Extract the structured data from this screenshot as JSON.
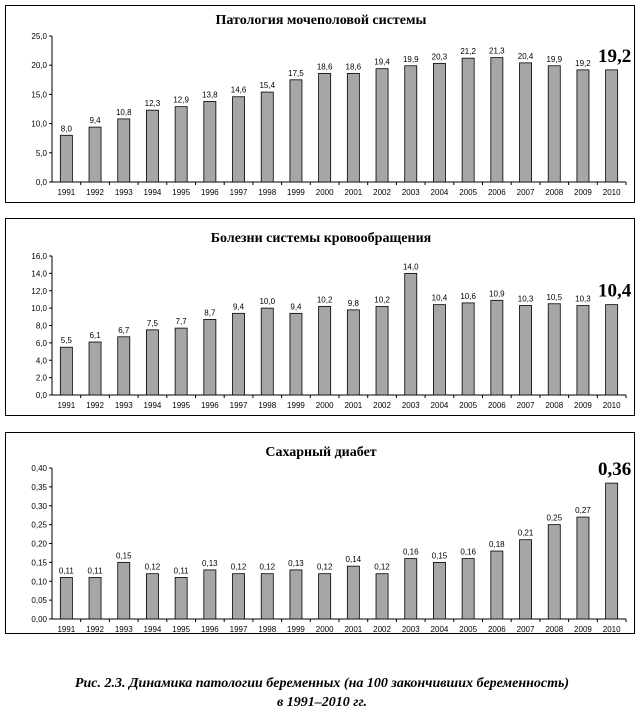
{
  "caption": {
    "line1": "Рис. 2.3. Динамика патологии беременных (на 100 закончивших беременность)",
    "line2": "в 1991–2010 гг."
  },
  "chart_data": [
    {
      "type": "bar",
      "title": "Патология мочеполовой системы",
      "categories": [
        "1991",
        "1992",
        "1993",
        "1994",
        "1995",
        "1996",
        "1997",
        "1998",
        "1999",
        "2000",
        "2001",
        "2002",
        "2003",
        "2004",
        "2005",
        "2006",
        "2007",
        "2008",
        "2009",
        "2010"
      ],
      "values": [
        8.0,
        9.4,
        10.8,
        12.3,
        12.9,
        13.8,
        14.6,
        15.4,
        17.5,
        18.6,
        18.6,
        19.4,
        19.9,
        20.3,
        21.2,
        21.3,
        20.4,
        19.9,
        19.2,
        19.2
      ],
      "value_labels": [
        "8,0",
        "9,4",
        "10,8",
        "12,3",
        "12,9",
        "13,8",
        "14,6",
        "15,4",
        "17,5",
        "18,6",
        "18,6",
        "19,4",
        "19,9",
        "20,3",
        "21,2",
        "21,3",
        "20,4",
        "19,9",
        "19,2",
        "19,2"
      ],
      "ylim": [
        0,
        25
      ],
      "yticks": [
        0,
        5,
        10,
        15,
        20,
        25
      ],
      "ytick_labels": [
        "0,0",
        "5,0",
        "10,0",
        "15,0",
        "20,0",
        "25,0"
      ],
      "highlight_last": true,
      "bar_color": "#a6a6a6",
      "grid": false
    },
    {
      "type": "bar",
      "title": "Болезни системы кровообращения",
      "categories": [
        "1991",
        "1992",
        "1993",
        "1994",
        "1995",
        "1996",
        "1997",
        "1998",
        "1999",
        "2000",
        "2001",
        "2002",
        "2003",
        "2004",
        "2005",
        "2006",
        "2007",
        "2008",
        "2009",
        "2010"
      ],
      "values": [
        5.5,
        6.1,
        6.7,
        7.5,
        7.7,
        8.7,
        9.4,
        10.0,
        9.4,
        10.2,
        9.8,
        10.2,
        14.0,
        10.4,
        10.6,
        10.9,
        10.3,
        10.5,
        10.3,
        10.4
      ],
      "value_labels": [
        "5,5",
        "6,1",
        "6,7",
        "7,5",
        "7,7",
        "8,7",
        "9,4",
        "10,0",
        "9,4",
        "10,2",
        "9,8",
        "10,2",
        "14,0",
        "10,4",
        "10,6",
        "10,9",
        "10,3",
        "10,5",
        "10,3",
        "10,4"
      ],
      "ylim": [
        0,
        16
      ],
      "yticks": [
        0,
        2,
        4,
        6,
        8,
        10,
        12,
        14,
        16
      ],
      "ytick_labels": [
        "0,0",
        "2,0",
        "4,0",
        "6,0",
        "8,0",
        "10,0",
        "12,0",
        "14,0",
        "16,0"
      ],
      "highlight_last": true,
      "bar_color": "#a6a6a6",
      "grid": false
    },
    {
      "type": "bar",
      "title": "Сахарный диабет",
      "categories": [
        "1991",
        "1992",
        "1993",
        "1994",
        "1995",
        "1996",
        "1997",
        "1998",
        "1999",
        "2000",
        "2001",
        "2002",
        "2003",
        "2004",
        "2005",
        "2006",
        "2007",
        "2008",
        "2009",
        "2010"
      ],
      "values": [
        0.11,
        0.11,
        0.15,
        0.12,
        0.11,
        0.13,
        0.12,
        0.12,
        0.13,
        0.12,
        0.14,
        0.12,
        0.16,
        0.15,
        0.16,
        0.18,
        0.21,
        0.25,
        0.27,
        0.36
      ],
      "value_labels": [
        "0,11",
        "0,11",
        "0,15",
        "0,12",
        "0,11",
        "0,13",
        "0,12",
        "0,12",
        "0,13",
        "0,12",
        "0,14",
        "0,12",
        "0,16",
        "0,15",
        "0,16",
        "0,18",
        "0,21",
        "0,25",
        "0,27",
        "0,36"
      ],
      "ylim": [
        0,
        0.4
      ],
      "yticks": [
        0,
        0.05,
        0.1,
        0.15,
        0.2,
        0.25,
        0.3,
        0.35,
        0.4
      ],
      "ytick_labels": [
        "0,00",
        "0,05",
        "0,10",
        "0,15",
        "0,20",
        "0,25",
        "0,30",
        "0,35",
        "0,40"
      ],
      "highlight_last": true,
      "bar_color": "#a6a6a6",
      "grid": false
    }
  ]
}
